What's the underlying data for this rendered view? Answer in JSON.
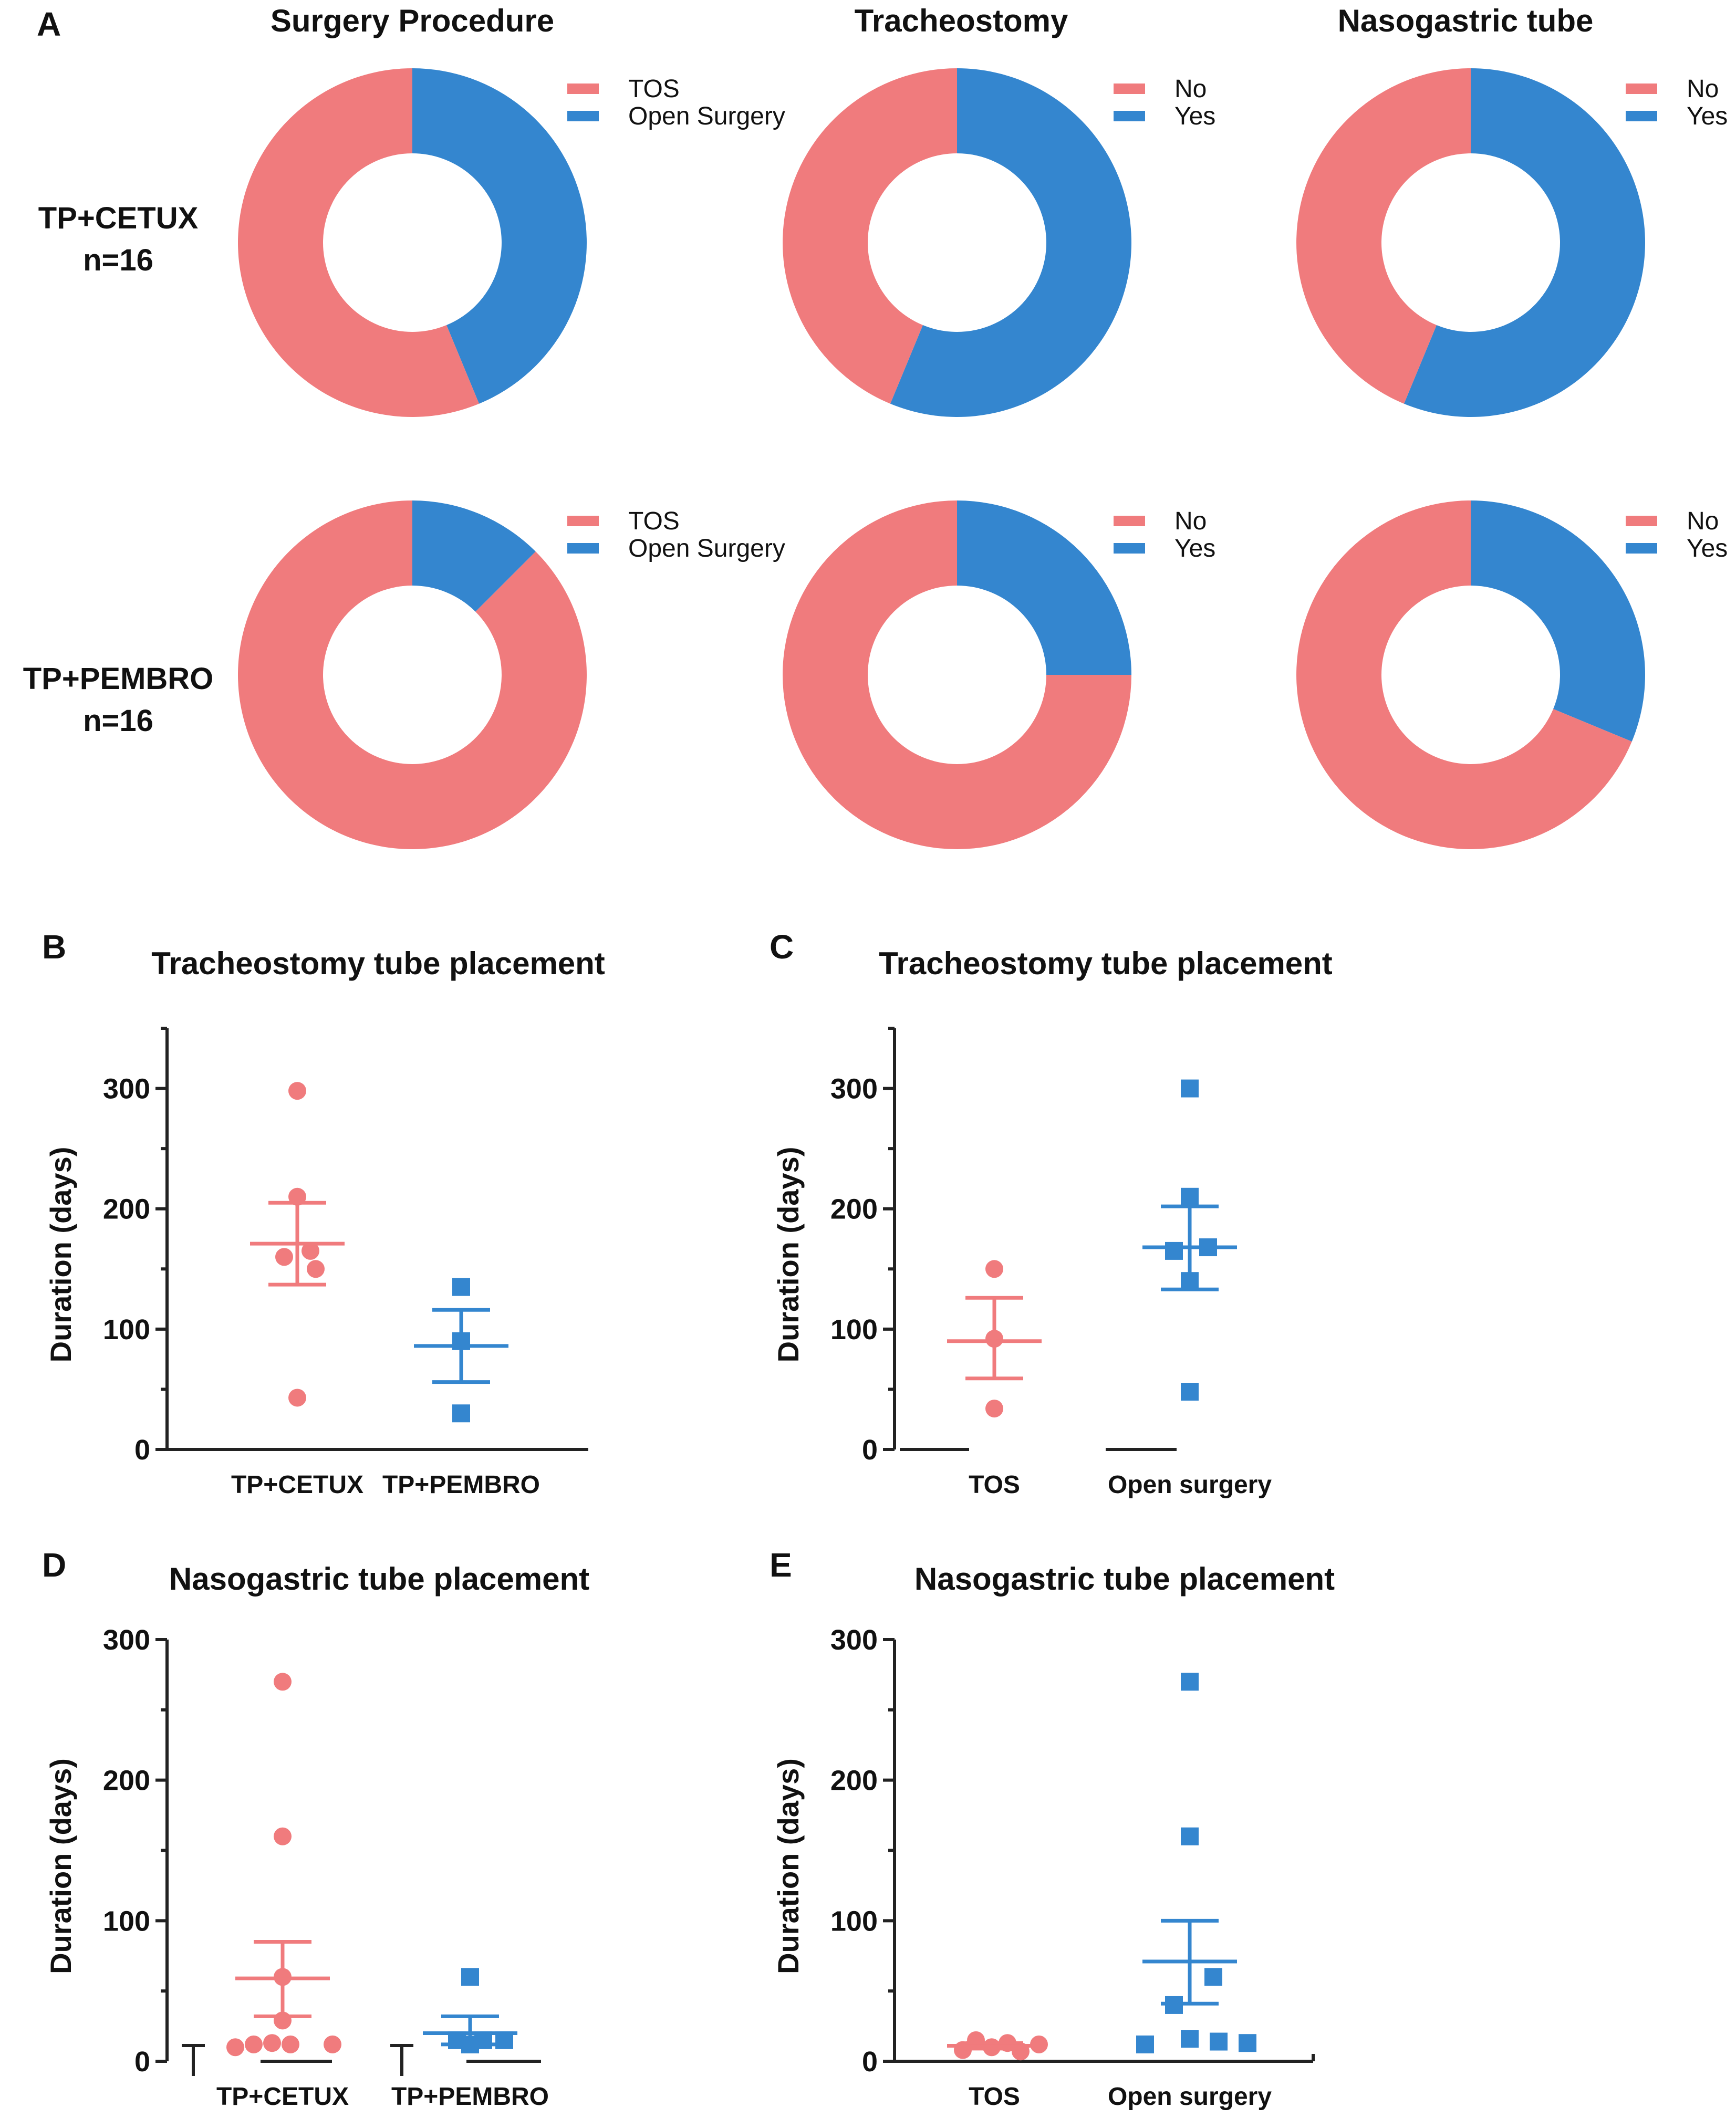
{
  "colors": {
    "red": "#f07b7d",
    "blue": "#3486cf",
    "axis": "#222222",
    "bg": "#ffffff"
  },
  "panelA": {
    "letter": "A",
    "columns": [
      "Surgery Procedure",
      "Tracheostomy",
      "Nasogastric tube"
    ],
    "rows": [
      {
        "line1": "TP+CETUX",
        "line2": "n=16"
      },
      {
        "line1": "TP+PEMBRO",
        "line2": "n=16"
      }
    ]
  },
  "panelB": {
    "letter": "B",
    "title": "Tracheostomy tube placement"
  },
  "panelC": {
    "letter": "C",
    "title": "Tracheostomy tube placement"
  },
  "panelD": {
    "letter": "D",
    "title": "Nasogastric tube placement"
  },
  "panelE": {
    "letter": "E",
    "title": "Nasogastric tube placement"
  },
  "chart_data": [
    {
      "id": "A1",
      "type": "pie",
      "style": "donut",
      "title": "Surgery Procedure",
      "group": "TP+CETUX n=16",
      "labels": [
        "TOS",
        "Open Surgery"
      ],
      "values": [
        9,
        7
      ]
    },
    {
      "id": "A2",
      "type": "pie",
      "style": "donut",
      "title": "Tracheostomy",
      "group": "TP+CETUX n=16",
      "labels": [
        "No",
        "Yes"
      ],
      "values": [
        7,
        9
      ]
    },
    {
      "id": "A3",
      "type": "pie",
      "style": "donut",
      "title": "Nasogastric tube",
      "group": "TP+CETUX n=16",
      "labels": [
        "No",
        "Yes"
      ],
      "values": [
        7,
        9
      ]
    },
    {
      "id": "A4",
      "type": "pie",
      "style": "donut",
      "title": "Surgery Procedure",
      "group": "TP+PEMBRO n=16",
      "labels": [
        "TOS",
        "Open Surgery"
      ],
      "values": [
        14,
        2
      ]
    },
    {
      "id": "A5",
      "type": "pie",
      "style": "donut",
      "title": "Tracheostomy",
      "group": "TP+PEMBRO n=16",
      "labels": [
        "No",
        "Yes"
      ],
      "values": [
        12,
        4
      ]
    },
    {
      "id": "A6",
      "type": "pie",
      "style": "donut",
      "title": "Nasogastric tube",
      "group": "TP+PEMBRO n=16",
      "labels": [
        "No",
        "Yes"
      ],
      "values": [
        11,
        5
      ]
    },
    {
      "id": "B",
      "type": "scatter",
      "title": "Tracheostomy tube placement",
      "ylabel": "Duration (days)",
      "ylim": [
        0,
        350
      ],
      "yticks": [
        0,
        100,
        200,
        300
      ],
      "groups": [
        {
          "name": "TP+CETUX",
          "marker": "circle",
          "points": [
            298,
            210,
            160,
            165,
            150,
            43
          ],
          "mean": 171,
          "sem": [
            137,
            205
          ]
        },
        {
          "name": "TP+PEMBRO",
          "marker": "square",
          "points": [
            135,
            90,
            30
          ],
          "mean": 86,
          "sem": [
            56,
            116
          ]
        }
      ]
    },
    {
      "id": "C",
      "type": "scatter",
      "title": "Tracheostomy tube placement",
      "ylabel": "Duration (days)",
      "ylim": [
        0,
        350
      ],
      "yticks": [
        0,
        100,
        200,
        300
      ],
      "groups": [
        {
          "name": "TOS",
          "marker": "circle",
          "points": [
            150,
            92,
            34
          ],
          "mean": 90,
          "sem": [
            59,
            126
          ]
        },
        {
          "name": "Open surgery",
          "marker": "square",
          "points": [
            300,
            210,
            165,
            168,
            140,
            48
          ],
          "mean": 168,
          "sem": [
            133,
            202
          ]
        }
      ]
    },
    {
      "id": "D",
      "type": "scatter",
      "title": "Nasogastric tube placement",
      "ylabel": "Duration (days)",
      "ylim": [
        0,
        300
      ],
      "yticks": [
        0,
        100,
        200,
        300
      ],
      "groups": [
        {
          "name": "TP+CETUX",
          "marker": "circle",
          "points": [
            270,
            160,
            60,
            29,
            10,
            12,
            13,
            12,
            12
          ],
          "mean": 59,
          "sem": [
            32,
            85
          ]
        },
        {
          "name": "TP+PEMBRO",
          "marker": "square",
          "points": [
            60,
            15,
            12,
            15,
            15
          ],
          "mean": 20,
          "sem": [
            12,
            32
          ]
        }
      ]
    },
    {
      "id": "E",
      "type": "scatter",
      "title": "Nasogastric tube placement",
      "ylabel": "Duration (days)",
      "ylim": [
        0,
        300
      ],
      "yticks": [
        0,
        100,
        200,
        300
      ],
      "groups": [
        {
          "name": "TOS",
          "marker": "circle",
          "points": [
            8,
            15,
            10,
            13,
            7,
            12
          ],
          "mean": 11,
          "sem": [
            9,
            13
          ]
        },
        {
          "name": "Open surgery",
          "marker": "square",
          "points": [
            270,
            160,
            60,
            40,
            12,
            16,
            14,
            13
          ],
          "mean": 71,
          "sem": [
            41,
            100
          ]
        }
      ]
    }
  ]
}
